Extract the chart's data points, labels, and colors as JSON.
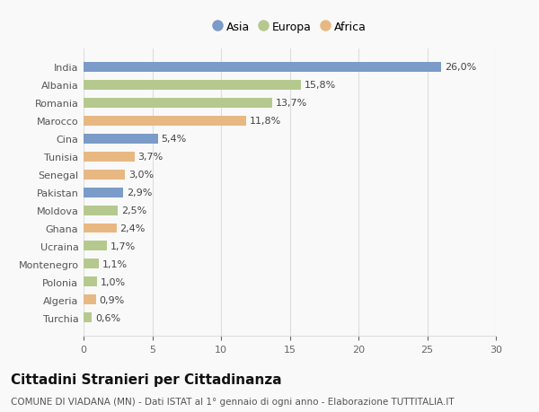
{
  "categories": [
    "Turchia",
    "Algeria",
    "Polonia",
    "Montenegro",
    "Ucraina",
    "Ghana",
    "Moldova",
    "Pakistan",
    "Senegal",
    "Tunisia",
    "Cina",
    "Marocco",
    "Romania",
    "Albania",
    "India"
  ],
  "values": [
    0.6,
    0.9,
    1.0,
    1.1,
    1.7,
    2.4,
    2.5,
    2.9,
    3.0,
    3.7,
    5.4,
    11.8,
    13.7,
    15.8,
    26.0
  ],
  "labels": [
    "0,6%",
    "0,9%",
    "1,0%",
    "1,1%",
    "1,7%",
    "2,4%",
    "2,5%",
    "2,9%",
    "3,0%",
    "3,7%",
    "5,4%",
    "11,8%",
    "13,7%",
    "15,8%",
    "26,0%"
  ],
  "continents": [
    "Europa",
    "Africa",
    "Europa",
    "Europa",
    "Europa",
    "Africa",
    "Europa",
    "Asia",
    "Africa",
    "Africa",
    "Asia",
    "Africa",
    "Europa",
    "Europa",
    "Asia"
  ],
  "colors": {
    "Asia": "#7b9bc8",
    "Europa": "#b5c98e",
    "Africa": "#e8b882"
  },
  "bar_height": 0.55,
  "xlim": [
    0,
    30
  ],
  "xticks": [
    0,
    5,
    10,
    15,
    20,
    25,
    30
  ],
  "title": "Cittadini Stranieri per Cittadinanza",
  "subtitle": "COMUNE DI VIADANA (MN) - Dati ISTAT al 1° gennaio di ogni anno - Elaborazione TUTTITALIA.IT",
  "legend_labels": [
    "Asia",
    "Europa",
    "Africa"
  ],
  "legend_colors": [
    "#7b9bc8",
    "#b5c98e",
    "#e8b882"
  ],
  "bg_color": "#f9f9f9",
  "grid_color": "#dddddd",
  "label_fontsize": 8,
  "title_fontsize": 11,
  "subtitle_fontsize": 7.5,
  "axis_label_fontsize": 8,
  "legend_fontsize": 9
}
